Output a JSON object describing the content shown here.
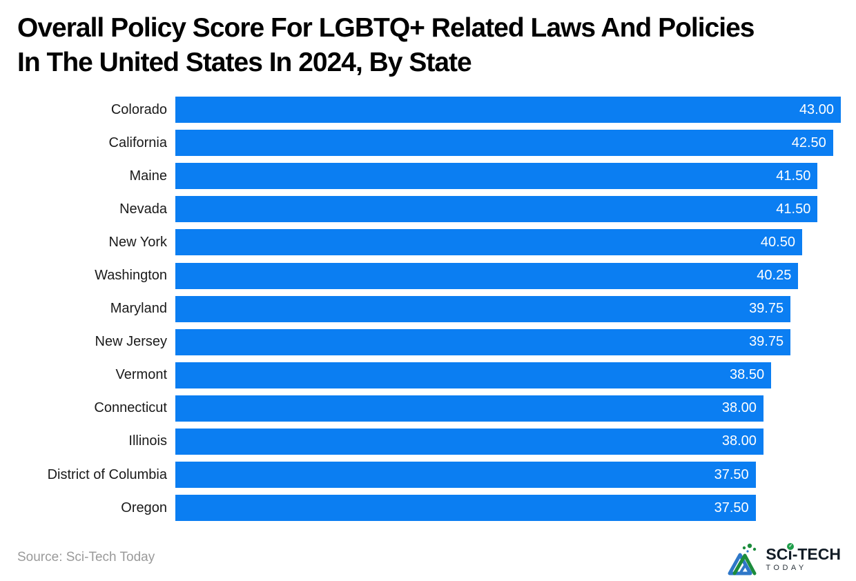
{
  "header": {
    "title_lines": [
      "Overall Policy Score For LGBTQ+ Related Laws And Policies",
      "In The United States In 2024, By State"
    ]
  },
  "chart_data": {
    "type": "bar",
    "orientation": "horizontal",
    "title": "Overall Policy Score For LGBTQ+ Related Laws And Policies In The United States In 2024, By State",
    "xlabel": "",
    "ylabel": "",
    "xlim": [
      0,
      43
    ],
    "grid": false,
    "legend": false,
    "bar_color": "#0b7ef2",
    "value_label_color": "#ffffff",
    "categories": [
      "Colorado",
      "California",
      "Maine",
      "Nevada",
      "New York",
      "Washington",
      "Maryland",
      "New Jersey",
      "Vermont",
      "Connecticut",
      "Illinois",
      "District of Columbia",
      "Oregon"
    ],
    "values": [
      43.0,
      42.5,
      41.5,
      41.5,
      40.5,
      40.25,
      39.75,
      39.75,
      38.5,
      38.0,
      38.0,
      37.5,
      37.5
    ],
    "value_labels": [
      "43.00",
      "42.50",
      "41.50",
      "41.50",
      "40.50",
      "40.25",
      "39.75",
      "39.75",
      "38.50",
      "38.00",
      "38.00",
      "37.50",
      "37.50"
    ]
  },
  "footer": {
    "source": "Source: Sci-Tech Today",
    "logo": {
      "text_pre": "SC",
      "text_i": "i",
      "text_post": "-TECH",
      "subtext": "TODAY",
      "check_glyph": "✓",
      "brand_blue": "#2e77c8",
      "brand_green": "#1e9e4a"
    }
  }
}
